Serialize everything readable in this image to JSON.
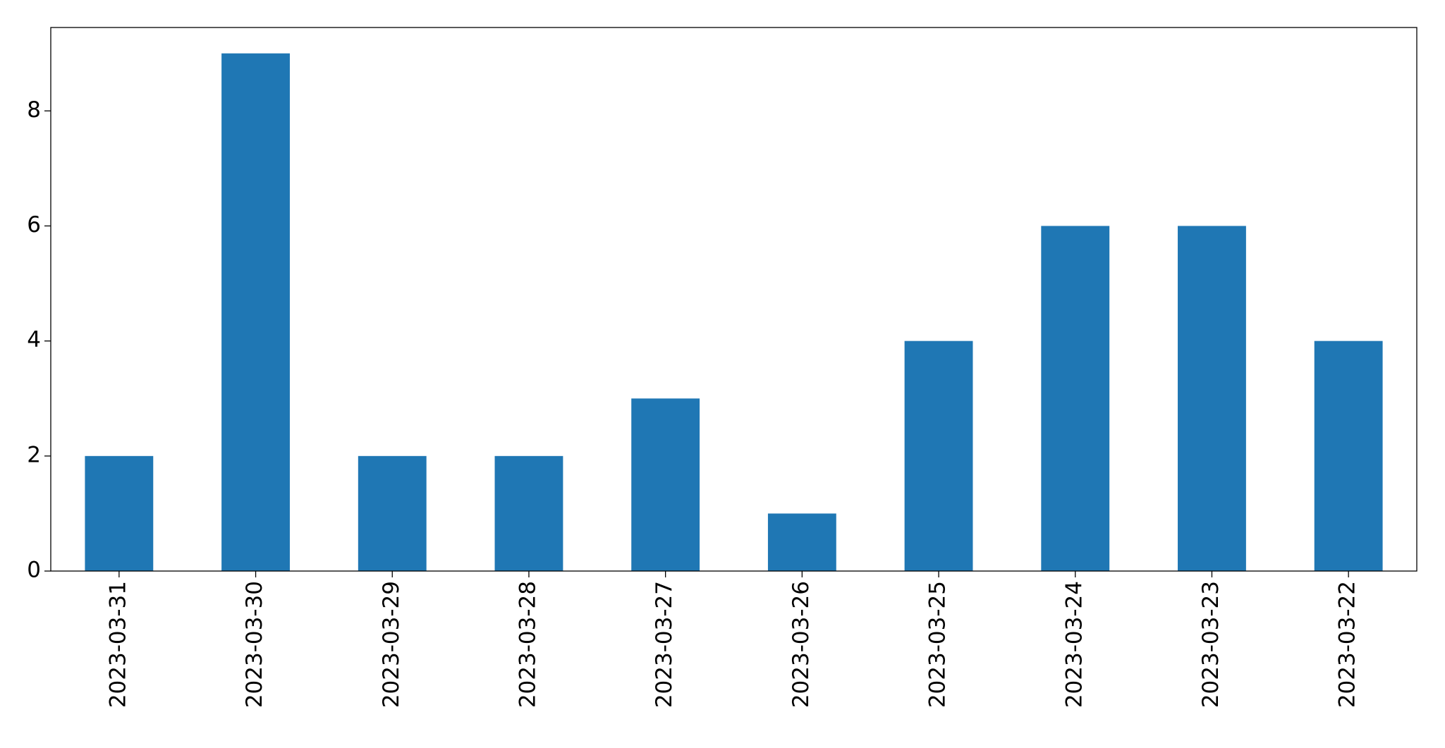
{
  "chart_data": {
    "type": "bar",
    "categories": [
      "2023-03-31",
      "2023-03-30",
      "2023-03-29",
      "2023-03-28",
      "2023-03-27",
      "2023-03-26",
      "2023-03-25",
      "2023-03-24",
      "2023-03-23",
      "2023-03-22"
    ],
    "values": [
      2,
      9,
      2,
      2,
      3,
      1,
      4,
      6,
      6,
      4
    ],
    "color": "#1f77b4",
    "ylim": [
      0,
      9.45
    ],
    "yticks": [
      0,
      2,
      4,
      6,
      8
    ],
    "grid": false
  }
}
